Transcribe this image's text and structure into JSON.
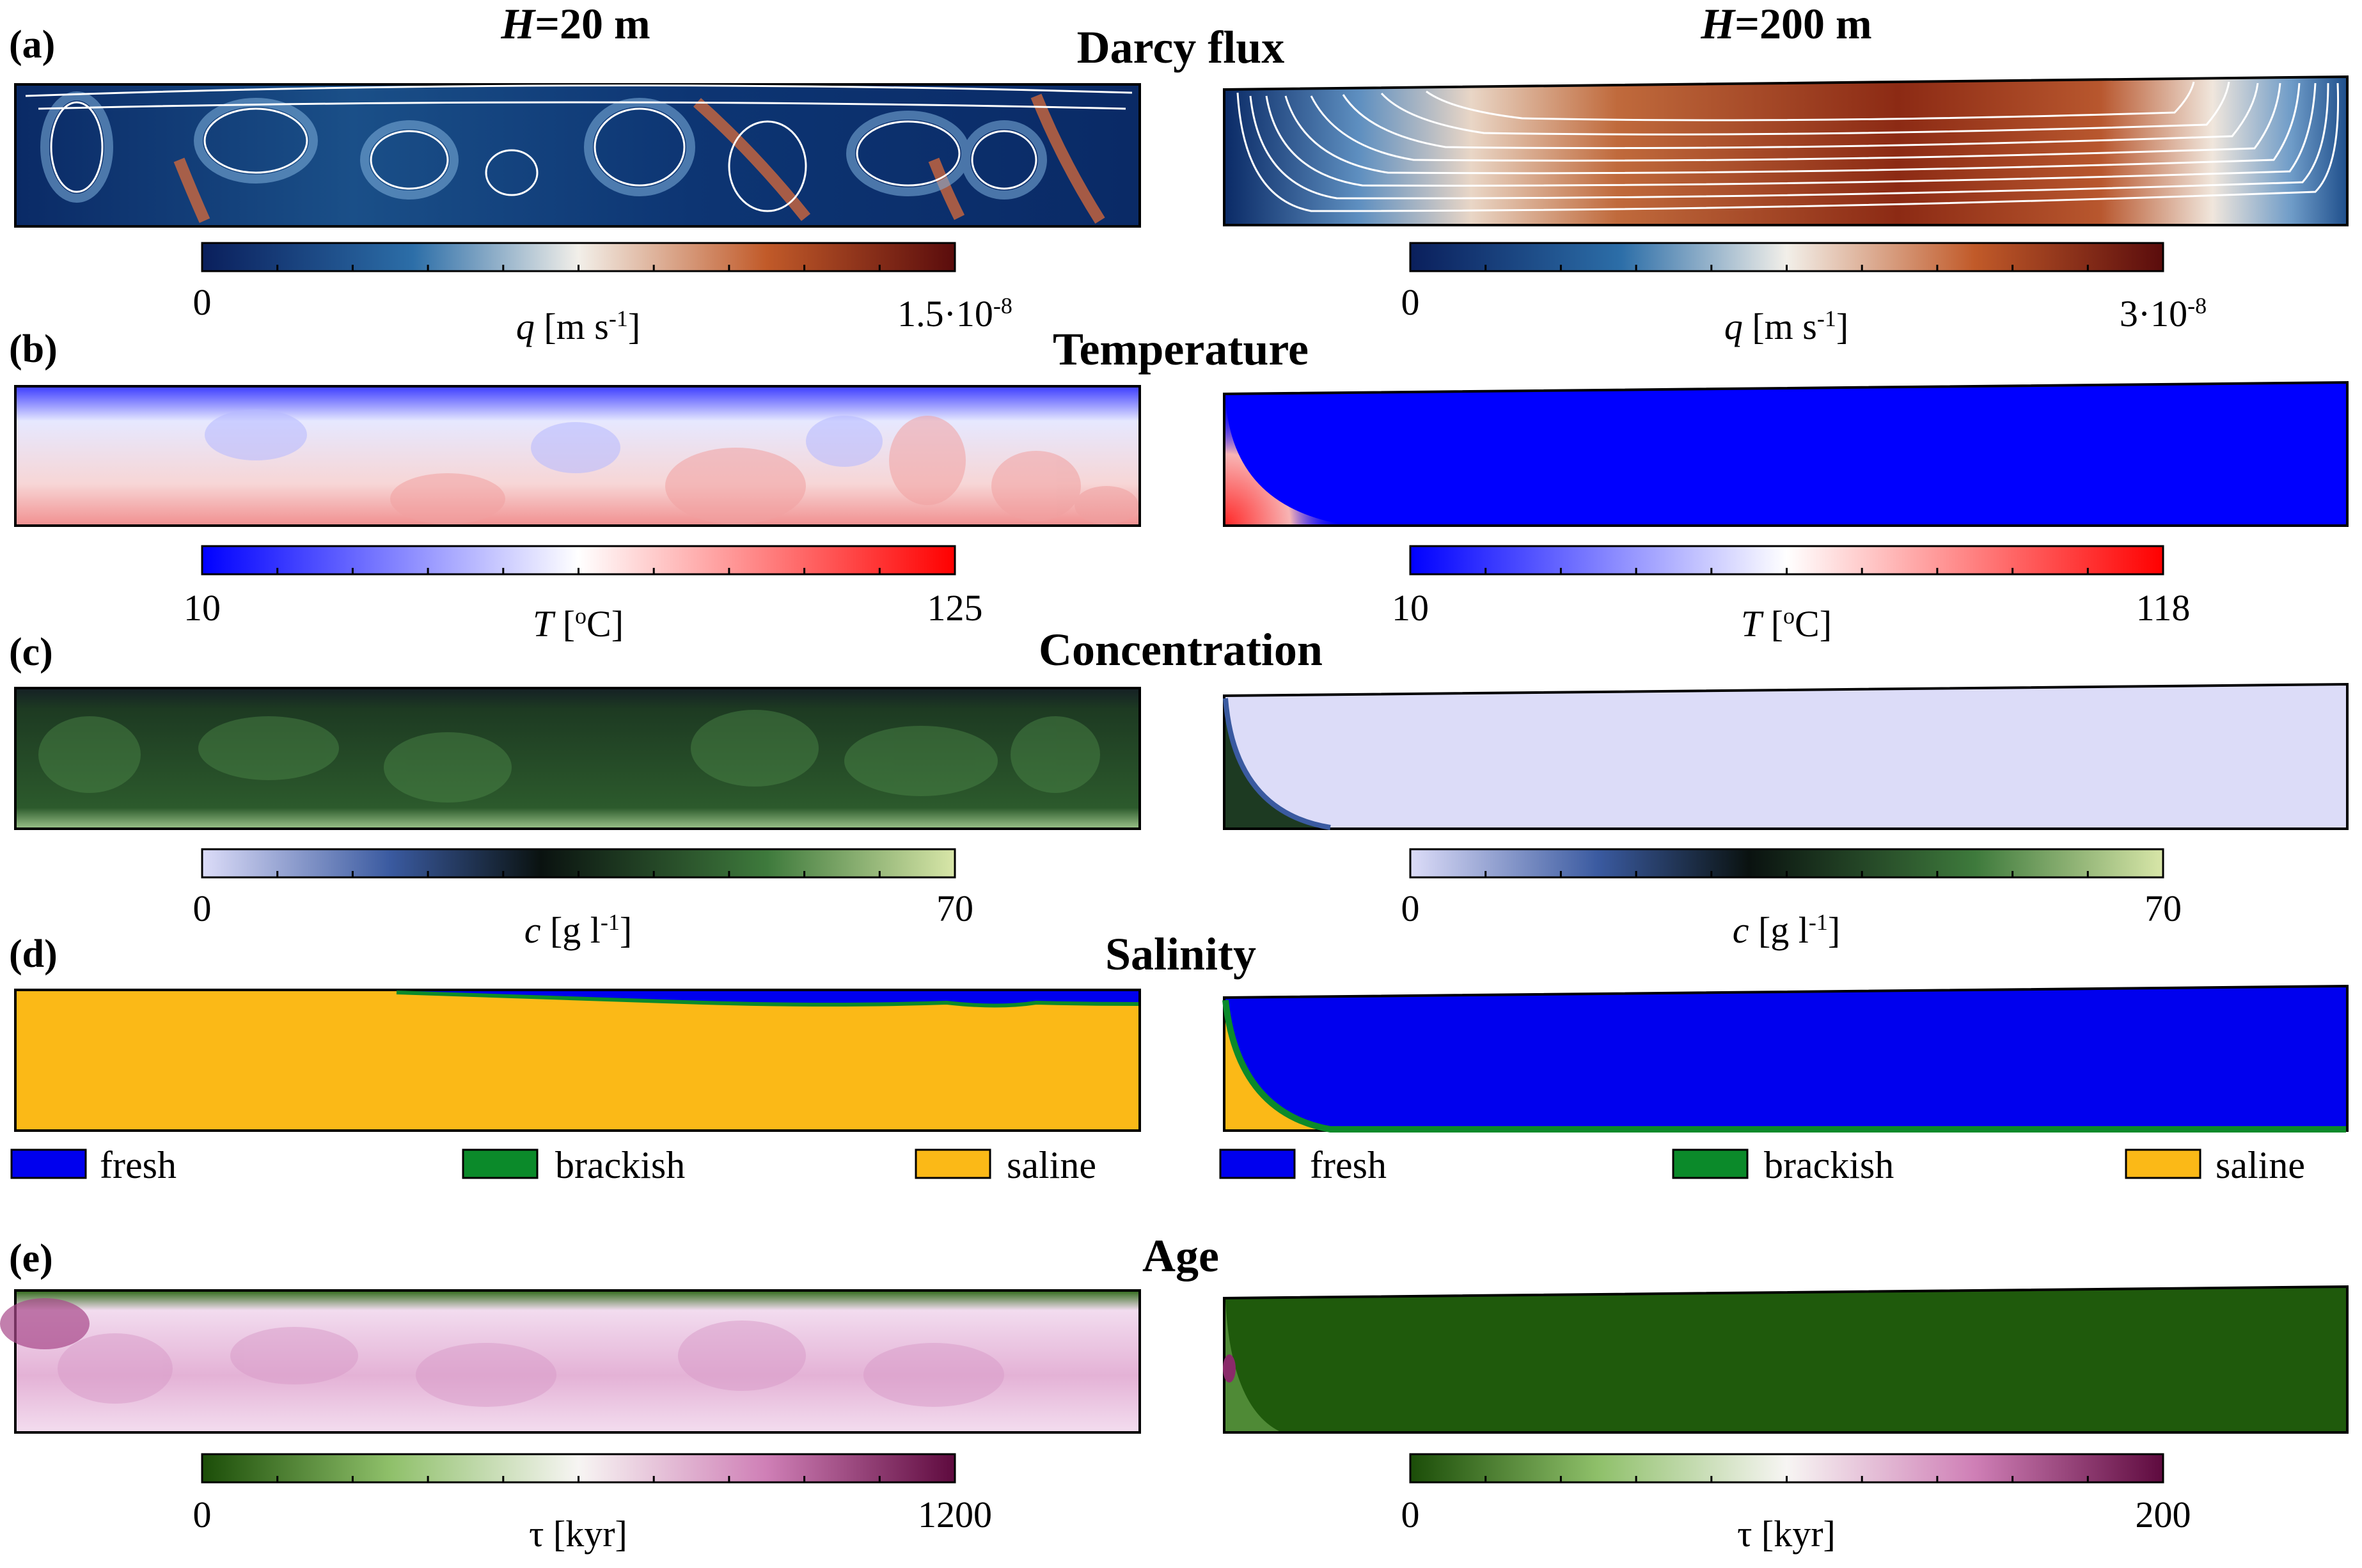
{
  "columns": [
    {
      "prefix": "H",
      "suffix": "=20 m"
    },
    {
      "prefix": "H",
      "suffix": "=200 m"
    }
  ],
  "rows": [
    {
      "panel": "(a)",
      "title": "Darcy flux",
      "left": {
        "min": "0",
        "max_base": "1.5·10",
        "max_exp": "-8",
        "var": "q",
        "unit_pre": " [m s",
        "unit_exp": "-1",
        "unit_post": "]"
      },
      "right": {
        "min": "0",
        "max_base": "3·10",
        "max_exp": "-8",
        "var": "q",
        "unit_pre": " [m s",
        "unit_exp": "-1",
        "unit_post": "]"
      }
    },
    {
      "panel": "(b)",
      "title": "Temperature",
      "left": {
        "min": "10",
        "max_base": "125",
        "max_exp": "",
        "var": "T",
        "unit_pre": " [",
        "unit_exp": "o",
        "unit_post": "C]"
      },
      "right": {
        "min": "10",
        "max_base": "118",
        "max_exp": "",
        "var": "T",
        "unit_pre": " [",
        "unit_exp": "o",
        "unit_post": "C]"
      }
    },
    {
      "panel": "(c)",
      "title": "Concentration",
      "left": {
        "min": "0",
        "max_base": "70",
        "max_exp": "",
        "var": "c",
        "unit_pre": " [g l",
        "unit_exp": "-1",
        "unit_post": "]"
      },
      "right": {
        "min": "0",
        "max_base": "70",
        "max_exp": "",
        "var": "c",
        "unit_pre": " [g l",
        "unit_exp": "-1",
        "unit_post": "]"
      }
    },
    {
      "panel": "(d)",
      "title": "Salinity",
      "legend": [
        "fresh",
        "brackish",
        "saline"
      ]
    },
    {
      "panel": "(e)",
      "title": "Age",
      "left": {
        "min": "0",
        "max_base": "1200",
        "max_exp": "",
        "var": "τ",
        "unit_pre": " [kyr]",
        "unit_exp": "",
        "unit_post": ""
      },
      "right": {
        "min": "0",
        "max_base": "200",
        "max_exp": "",
        "var": "τ",
        "unit_pre": " [kyr]",
        "unit_exp": "",
        "unit_post": ""
      }
    }
  ],
  "colors": {
    "fresh": "#0000ee",
    "brackish": "#0b8a2a",
    "saline": "#fbb917",
    "flux": [
      "#0a1f5c",
      "#2c6ea8",
      "#f2efe9",
      "#c15a29",
      "#5a0c0c"
    ],
    "temperature": [
      "#0000ff",
      "#ffffff",
      "#ff0000"
    ],
    "concentration": [
      "#dcdcf8",
      "#3a5aa0",
      "#0a1210",
      "#3e7a3c",
      "#d8e6a8"
    ],
    "age": [
      "#1b4d08",
      "#f7f5f3",
      "#5e0a3e"
    ]
  }
}
